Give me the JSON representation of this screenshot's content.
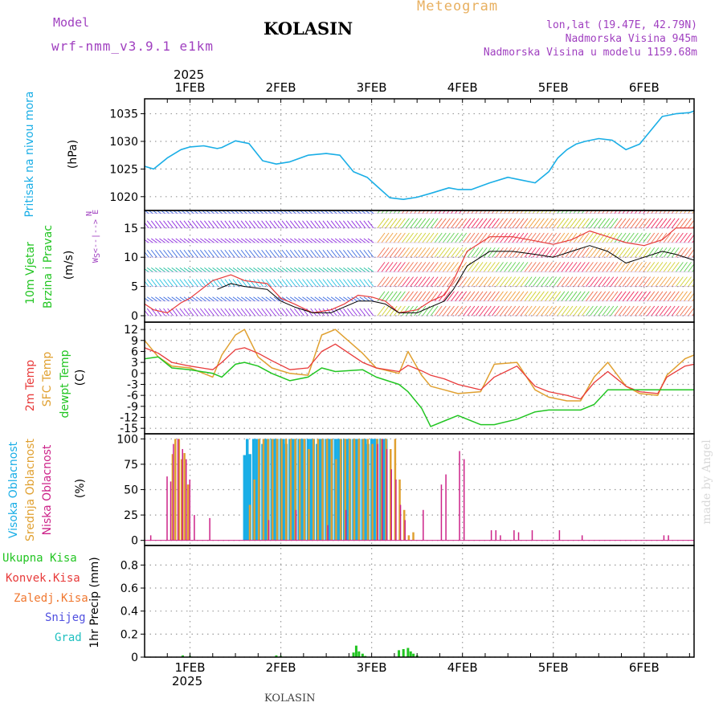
{
  "header": {
    "model_label": "Model",
    "model_name": "wrf-nmm_v3.9.1 e1km",
    "station": "KOLASIN",
    "product": "Meteogram",
    "lonlat": "lon,lat (19.47E, 42.79N)",
    "altitude": "Nadmorska Visina 945m",
    "model_altitude": "Nadmorska Visina u modelu 1159.68m"
  },
  "footer": {
    "station": "KOLASIN",
    "watermark": "made by Angel"
  },
  "time_axis": {
    "year": "2025",
    "labels": [
      "1FEB",
      "2FEB",
      "3FEB",
      "4FEB",
      "5FEB",
      "6FEB"
    ],
    "day_range": [
      -0.5,
      5.55
    ]
  },
  "colors": {
    "pressure": "#1aaee6",
    "temp2m": "#e83a3a",
    "sfc": "#e0a030",
    "dewpt": "#22c522",
    "high_cloud": "#1aaee6",
    "mid_cloud": "#e0a030",
    "low_cloud": "#cc2288",
    "total_precip": "#22c522",
    "conv_precip": "#e83a3a",
    "frz_precip": "#f07830",
    "snow": "#5050e0",
    "graupel": "#20c0c0",
    "wind_gust": "#e83a3a",
    "wind_mean": "#000000"
  },
  "chart_data": [
    {
      "type": "line",
      "panel": "pressure",
      "ylabel": "Pritisak na nivou mora",
      "unit": "(hPa)",
      "ylim": [
        1017.5,
        1037.7
      ],
      "yticks": [
        1020,
        1025,
        1030,
        1035
      ],
      "grid": true,
      "series": [
        {
          "x": [
            -0.5,
            -0.4,
            -0.25,
            -0.1,
            0,
            0.15,
            0.3,
            0.35,
            0.5,
            0.65,
            0.8,
            0.95,
            1.1,
            1.3,
            1.5,
            1.65,
            1.8,
            1.95,
            2.05,
            2.2,
            2.35,
            2.5,
            2.65,
            2.85,
            2.95,
            3.1,
            3.3,
            3.5,
            3.65,
            3.8,
            3.95,
            4.05,
            4.15,
            4.25,
            4.35,
            4.5,
            4.65,
            4.8,
            4.95,
            5.1,
            5.2,
            5.35,
            5.5,
            5.55
          ],
          "values": [
            1025.5,
            1025,
            1027,
            1028.5,
            1029,
            1029.2,
            1028.7,
            1028.9,
            1030.1,
            1029.6,
            1026.5,
            1025.9,
            1026.3,
            1027.5,
            1027.8,
            1027.5,
            1024.5,
            1023.5,
            1022,
            1019.8,
            1019.5,
            1019.9,
            1020.6,
            1021.6,
            1021.3,
            1021.3,
            1022.5,
            1023.5,
            1023,
            1022.5,
            1024.5,
            1027,
            1028.5,
            1029.5,
            1030,
            1030.5,
            1030.2,
            1028.5,
            1029.5,
            1032.5,
            1034.5,
            1035,
            1035.2,
            1035.5
          ]
        }
      ]
    },
    {
      "type": "line",
      "panel": "wind",
      "ylabel": [
        "10m Vjetar",
        "Brzina i Pravac"
      ],
      "unit": "(m/s)",
      "direction_legend": [
        "N",
        "W <--|--> E",
        "S"
      ],
      "ylim": [
        -1.1,
        18
      ],
      "yticks": [
        0,
        5,
        10,
        15
      ],
      "grid": true,
      "series": [
        {
          "role": "gust",
          "x": [
            -0.5,
            -0.4,
            -0.25,
            -0.1,
            0,
            0.25,
            0.45,
            0.6,
            0.85,
            1,
            1.15,
            1.35,
            1.55,
            1.7,
            1.85,
            2,
            2.15,
            2.3,
            2.5,
            2.65,
            2.8,
            2.9,
            3.05,
            3.3,
            3.55,
            3.8,
            4,
            4.2,
            4.4,
            4.6,
            4.8,
            5,
            5.2,
            5.35,
            5.55
          ],
          "values": [
            2,
            1,
            0.5,
            2.2,
            3,
            6,
            7,
            6,
            5.5,
            3,
            2,
            0.5,
            1,
            2,
            3.5,
            3.2,
            2.5,
            0.5,
            1,
            2.5,
            3.5,
            6,
            11,
            13.5,
            13.5,
            12.8,
            12.2,
            13,
            14.5,
            13.5,
            12.5,
            12,
            13,
            15,
            15
          ]
        },
        {
          "role": "mean",
          "x": [
            0.3,
            0.45,
            0.6,
            0.85,
            1,
            1.15,
            1.35,
            1.55,
            1.7,
            1.85,
            2,
            2.15,
            2.3,
            2.5,
            2.65,
            2.8,
            2.9,
            3.05,
            3.3,
            3.55,
            3.8,
            4,
            4.2,
            4.4,
            4.6,
            4.8,
            5,
            5.2,
            5.35,
            5.55
          ],
          "values": [
            4.5,
            5.5,
            5,
            4.5,
            2.5,
            1.5,
            0.5,
            0.5,
            1.5,
            2.5,
            2.5,
            2,
            0.5,
            0.5,
            1.5,
            2.5,
            4.5,
            8.5,
            11,
            11,
            10.5,
            10,
            11,
            12,
            11,
            9,
            10,
            11,
            10.5,
            9.5
          ]
        }
      ]
    },
    {
      "type": "line",
      "panel": "temperature",
      "ylabel": [
        "2m Temp",
        "SFC Temp",
        "dewpt Temp"
      ],
      "unit": "(C)",
      "ylim": [
        -16.5,
        14
      ],
      "yticks": [
        -15,
        -12,
        -9,
        -6,
        -3,
        0,
        3,
        6,
        9,
        12
      ],
      "grid": true,
      "series": [
        {
          "name": "2m Temp",
          "x": [
            -0.5,
            -0.35,
            -0.2,
            0,
            0.25,
            0.35,
            0.5,
            0.6,
            0.75,
            0.9,
            1.1,
            1.3,
            1.45,
            1.6,
            1.9,
            2.05,
            2.3,
            2.4,
            2.55,
            2.65,
            2.8,
            2.95,
            3.2,
            3.35,
            3.6,
            3.8,
            3.95,
            4.15,
            4.3,
            4.45,
            4.6,
            4.8,
            4.95,
            5.15,
            5.25,
            5.45,
            5.55
          ],
          "values": [
            7,
            5.5,
            3,
            2,
            1,
            3,
            6.5,
            7,
            5.5,
            3.5,
            1,
            1.5,
            6,
            8,
            3,
            1.5,
            0.5,
            2.2,
            0.7,
            -0.5,
            -1.5,
            -3,
            -4.5,
            -1,
            2,
            -3.5,
            -5,
            -6,
            -7,
            -2.5,
            0.5,
            -3.5,
            -5,
            -5.5,
            -1,
            2,
            2.5
          ]
        },
        {
          "name": "SFC Temp",
          "x": [
            -0.5,
            -0.35,
            -0.2,
            0,
            0.25,
            0.35,
            0.5,
            0.6,
            0.75,
            0.9,
            1.1,
            1.3,
            1.45,
            1.6,
            1.9,
            2.05,
            2.3,
            2.4,
            2.55,
            2.65,
            2.8,
            2.95,
            3.2,
            3.35,
            3.6,
            3.8,
            3.95,
            4.15,
            4.3,
            4.45,
            4.6,
            4.8,
            4.95,
            5.15,
            5.25,
            5.45,
            5.55
          ],
          "values": [
            9,
            4.5,
            2,
            1.5,
            -1,
            5,
            10.5,
            12,
            4.5,
            1.5,
            0,
            -0.5,
            10.5,
            12,
            5.5,
            1.5,
            0,
            6,
            -0.5,
            -3.5,
            -4.5,
            -5.5,
            -5,
            2.5,
            3,
            -4.5,
            -6.5,
            -7.5,
            -7.5,
            -1,
            3,
            -3.5,
            -5.5,
            -6,
            -0.5,
            4,
            5
          ]
        },
        {
          "name": "dewpt Temp",
          "x": [
            -0.5,
            -0.35,
            -0.2,
            0,
            0.25,
            0.35,
            0.5,
            0.6,
            0.75,
            0.9,
            1.1,
            1.3,
            1.45,
            1.6,
            1.9,
            2.05,
            2.3,
            2.4,
            2.55,
            2.65,
            2.8,
            2.95,
            3.2,
            3.35,
            3.6,
            3.8,
            3.95,
            4.15,
            4.3,
            4.45,
            4.6,
            4.8,
            4.95,
            5.15,
            5.25,
            5.45,
            5.55
          ],
          "values": [
            4,
            4.5,
            1.5,
            1,
            0,
            -1,
            2.5,
            3,
            2,
            0,
            -2,
            -1,
            1.5,
            0.5,
            1,
            -1,
            -3,
            -5,
            -9.5,
            -14.5,
            -13,
            -11.5,
            -14,
            -14,
            -12.5,
            -10.5,
            -10,
            -10,
            -10,
            -8.5,
            -4.5,
            -4.5,
            -4.5,
            -4.5,
            -4.5,
            -4.5,
            -4.5
          ]
        }
      ]
    },
    {
      "type": "bar",
      "panel": "clouds",
      "ylabel": [
        "Visoka Oblacnost",
        "Srednja Oblacnost",
        "Niska Oblacnost"
      ],
      "unit": "(%)",
      "ylim": [
        -5,
        105
      ],
      "yticks": [
        0,
        25,
        50,
        75,
        100
      ],
      "grid": true,
      "series": [
        {
          "name": "Visoka Oblacnost",
          "x": [
            0.6,
            0.63,
            0.66,
            0.7,
            0.73,
            0.76,
            0.8,
            0.83,
            0.86,
            0.9,
            0.93,
            0.96,
            1.0,
            1.03,
            1.06,
            1.1,
            1.13,
            1.16,
            1.2,
            1.23,
            1.26,
            1.3,
            1.33,
            1.36,
            1.4,
            1.43,
            1.46,
            1.5,
            1.53,
            1.56,
            1.6,
            1.63,
            1.66,
            1.7,
            1.73,
            1.76,
            1.8,
            1.83,
            1.86,
            1.9,
            1.93,
            1.96,
            2.0,
            2.03,
            2.06,
            2.1,
            2.13,
            2.16
          ],
          "values": [
            84,
            100,
            85,
            100,
            100,
            100,
            95,
            100,
            100,
            100,
            100,
            100,
            100,
            100,
            95,
            100,
            100,
            100,
            100,
            100,
            100,
            100,
            100,
            100,
            95,
            100,
            100,
            100,
            100,
            100,
            100,
            100,
            100,
            100,
            100,
            100,
            100,
            100,
            100,
            100,
            100,
            95,
            100,
            100,
            100,
            100,
            100,
            100
          ]
        },
        {
          "name": "Srednja Oblacnost",
          "x": [
            -0.2,
            -0.17,
            -0.13,
            -0.1,
            -0.07,
            -0.03,
            0.65,
            0.7,
            0.75,
            0.8,
            0.85,
            0.9,
            0.95,
            1.0,
            1.05,
            1.1,
            1.15,
            1.2,
            1.25,
            1.3,
            1.35,
            1.4,
            1.45,
            1.5,
            1.55,
            1.6,
            1.65,
            1.7,
            1.75,
            1.8,
            1.85,
            1.9,
            1.95,
            2.0,
            2.05,
            2.1,
            2.15,
            2.2,
            2.25,
            2.3,
            2.35,
            2.4,
            2.45
          ],
          "values": [
            85,
            100,
            100,
            80,
            86,
            55,
            35,
            60,
            100,
            100,
            100,
            100,
            100,
            100,
            100,
            100,
            100,
            100,
            100,
            90,
            100,
            100,
            100,
            100,
            100,
            80,
            100,
            100,
            100,
            100,
            100,
            100,
            100,
            95,
            100,
            100,
            100,
            90,
            100,
            60,
            30,
            5,
            8
          ]
        },
        {
          "name": "Niska Oblacnost",
          "x": [
            -0.45,
            -0.27,
            -0.23,
            -0.2,
            -0.15,
            -0.1,
            -0.06,
            -0.02,
            0.03,
            0.2,
            0.85,
            1.15,
            1.5,
            1.7,
            2.05,
            2.1,
            2.15,
            2.2,
            2.25,
            2.3,
            2.35,
            2.55,
            2.75,
            2.8,
            2.95,
            3.0,
            3.3,
            3.35,
            3.4,
            3.55,
            3.6,
            3.75,
            4.05,
            4.3,
            5.2,
            5.25
          ],
          "values": [
            5,
            63,
            58,
            95,
            100,
            90,
            80,
            60,
            25,
            22,
            20,
            30,
            15,
            30,
            95,
            100,
            90,
            70,
            60,
            35,
            20,
            30,
            55,
            65,
            88,
            80,
            10,
            10,
            5,
            10,
            8,
            10,
            10,
            5,
            5,
            5
          ]
        }
      ]
    },
    {
      "type": "bar",
      "panel": "precipitation",
      "ylabel": "1hr Precip (mm)",
      "legend": [
        "Ukupna Kisa",
        "Konvek.Kisa",
        "Zaledj.Kisa",
        "Snijeg",
        "Grad"
      ],
      "ylim": [
        0,
        0.97
      ],
      "yticks": [
        0,
        0.2,
        0.4,
        0.6,
        0.8
      ],
      "grid": true,
      "series": [
        {
          "name": "Ukupna Kisa",
          "x": [
            -0.08,
            0.0,
            0.95,
            1.0,
            1.8,
            1.83,
            1.86,
            1.9,
            1.93,
            2.3,
            2.35,
            2.4,
            2.43,
            2.46,
            2.5
          ],
          "values": [
            0.015,
            0.01,
            0.015,
            0.01,
            0.04,
            0.1,
            0.05,
            0.03,
            0.01,
            0.06,
            0.07,
            0.08,
            0.05,
            0.03,
            0.015
          ]
        }
      ]
    }
  ]
}
